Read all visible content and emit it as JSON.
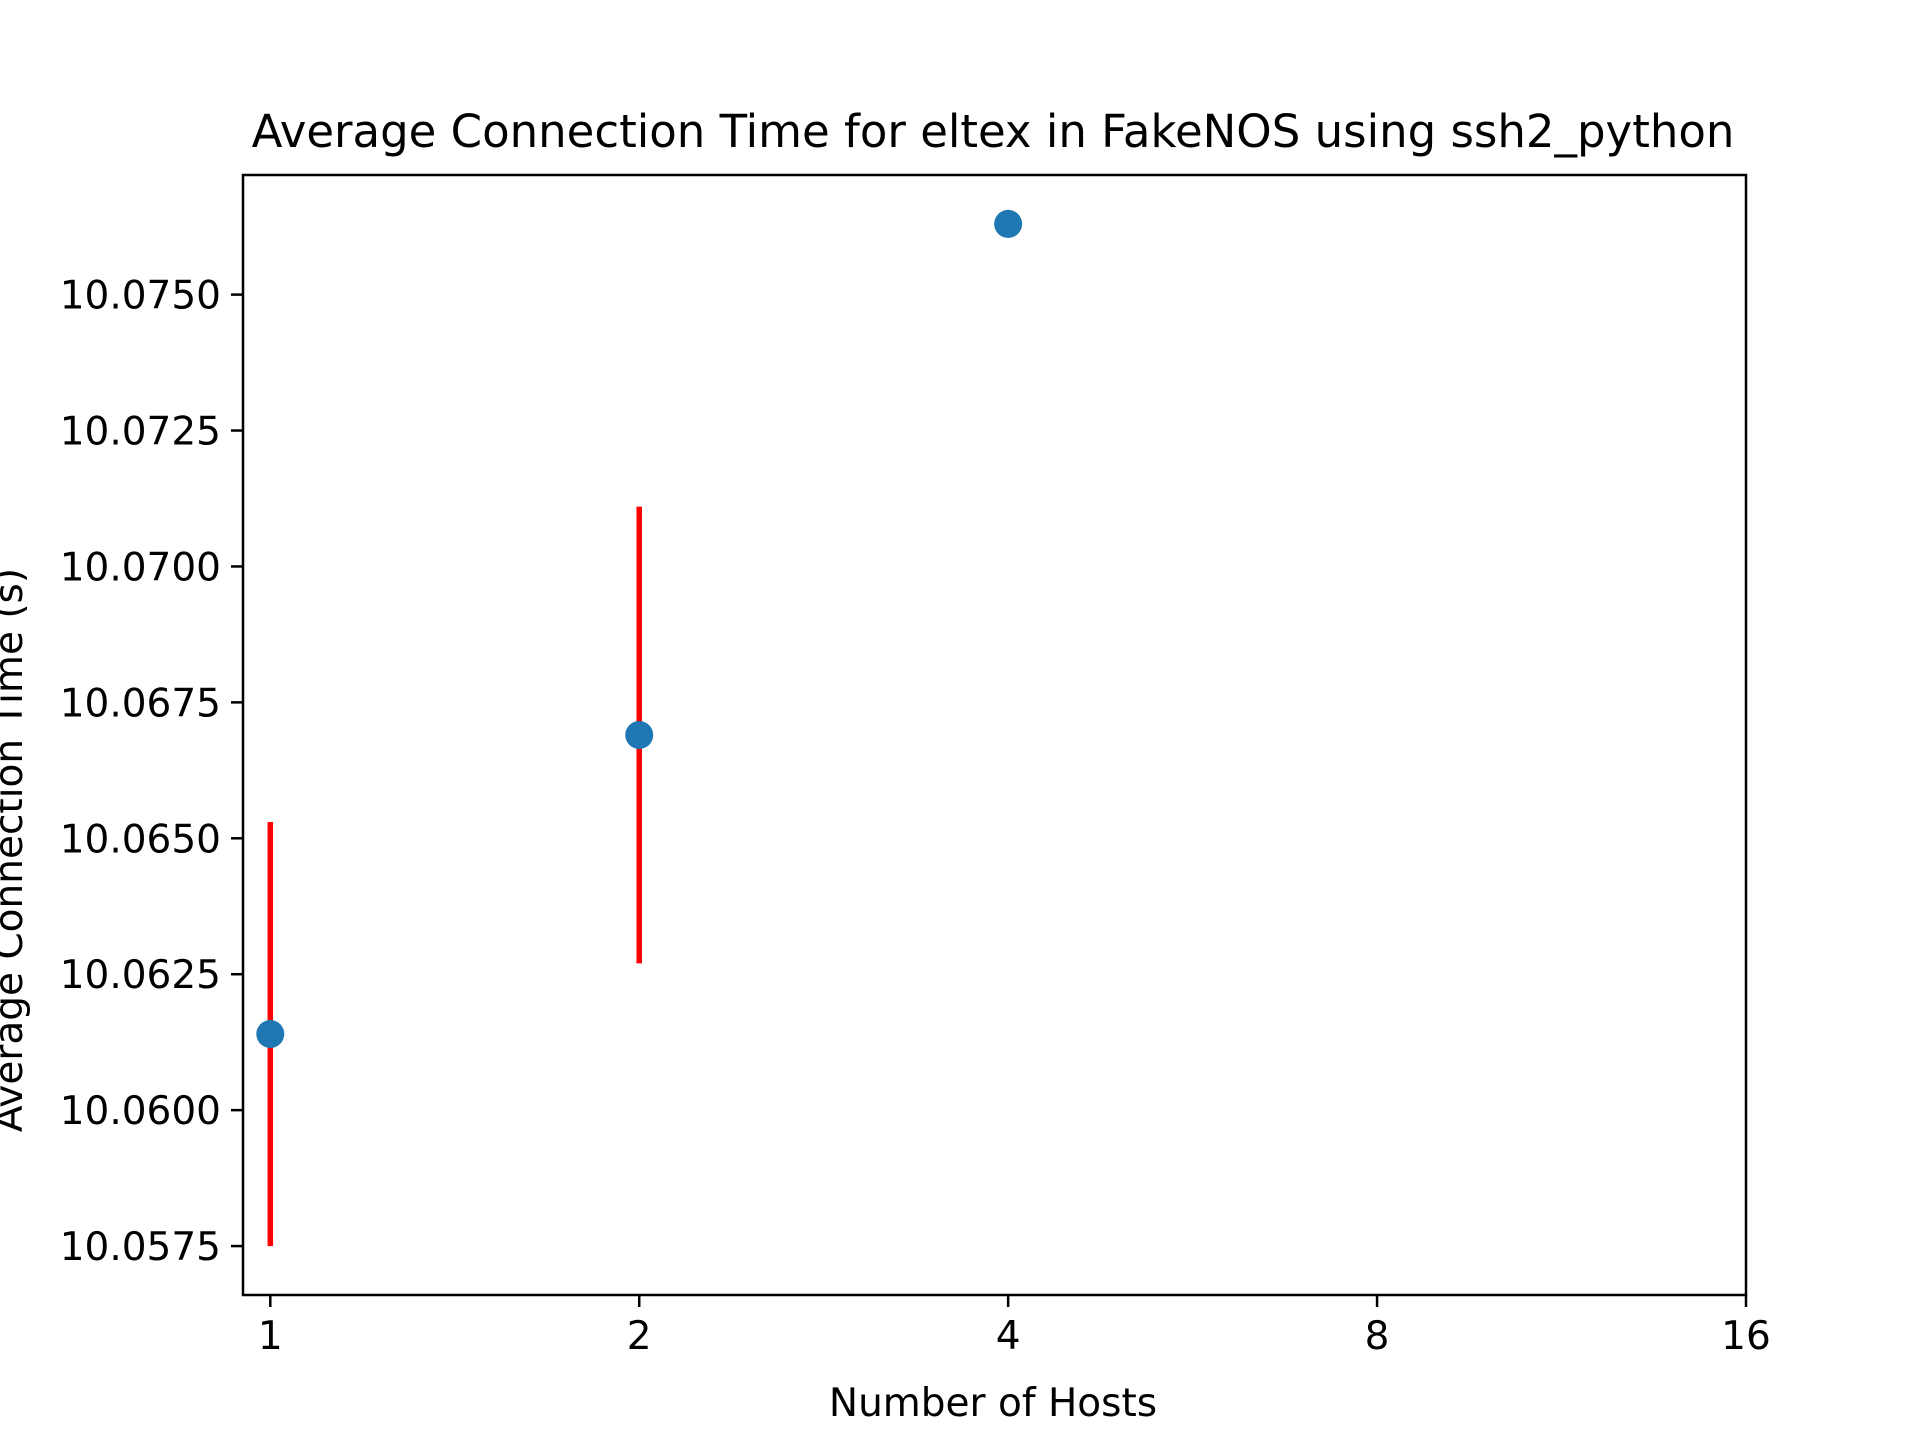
{
  "chart_data": {
    "type": "scatter",
    "title": "Average Connection Time for eltex in FakeNOS using ssh2_python",
    "xlabel": "Number of Hosts",
    "ylabel": "Average Connection Time (s)",
    "x_scale": "log2",
    "x_ticks": [
      1,
      2,
      4,
      8,
      16
    ],
    "x_tick_labels": [
      "1",
      "2",
      "4",
      "8",
      "16"
    ],
    "y_ticks": [
      10.0575,
      10.06,
      10.0625,
      10.065,
      10.0675,
      10.07,
      10.0725,
      10.075
    ],
    "y_tick_labels": [
      "10.0575",
      "10.0600",
      "10.0625",
      "10.0650",
      "10.0675",
      "10.0700",
      "10.0725",
      "10.0750"
    ],
    "xlim": [
      0.95,
      16
    ],
    "ylim": [
      10.0566,
      10.0772
    ],
    "grid": false,
    "legend": false,
    "marker_color": "#1f77b4",
    "errorbar_color": "#ff0000",
    "points": [
      {
        "x": 1,
        "y": 10.0614,
        "err_low": 10.0575,
        "err_high": 10.0653
      },
      {
        "x": 2,
        "y": 10.0669,
        "err_low": 10.0627,
        "err_high": 10.0711
      },
      {
        "x": 4,
        "y": 10.0763,
        "err_low": 10.0763,
        "err_high": 10.0763
      }
    ]
  }
}
